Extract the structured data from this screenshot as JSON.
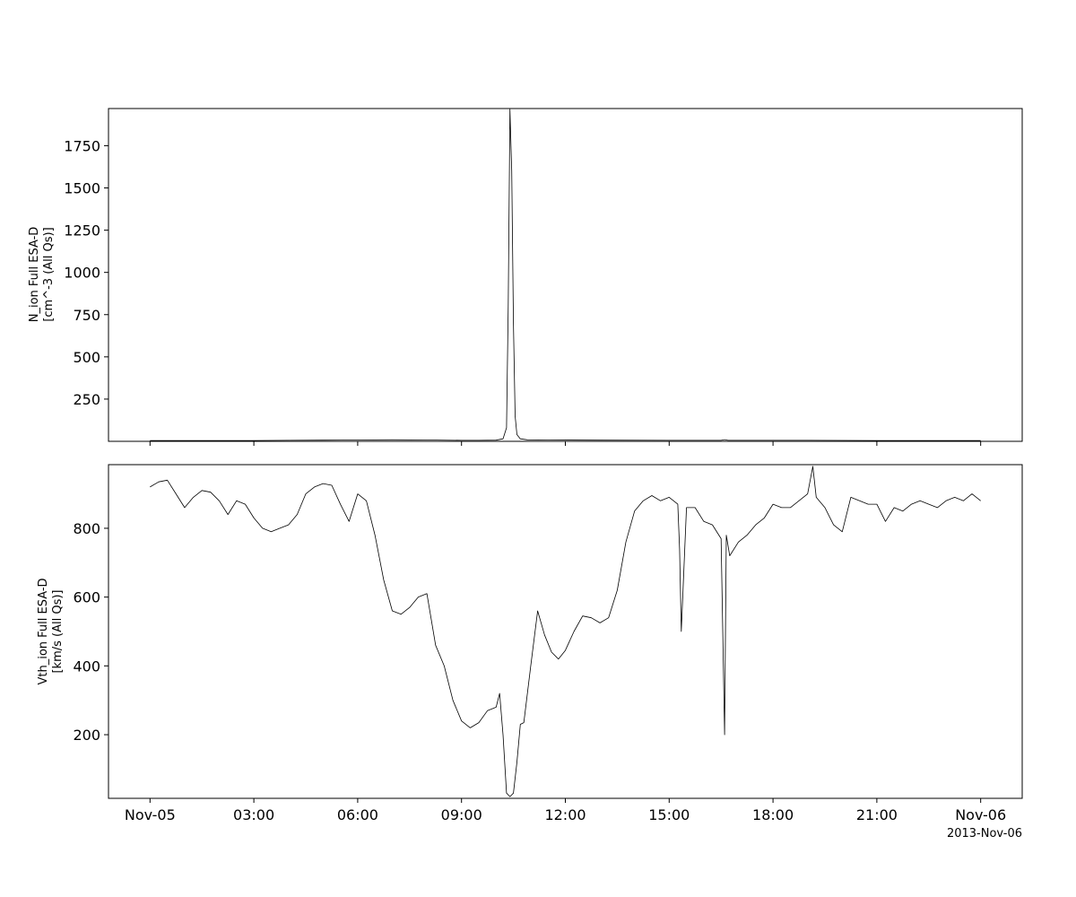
{
  "chart_data": [
    {
      "type": "line",
      "ylabel_line1": "N_ion Full ESA-D",
      "ylabel_line2": "[cm^-3 (All Qs)]",
      "ylim": [
        0,
        1970
      ],
      "yticks": [
        250,
        500,
        750,
        1000,
        1250,
        1500,
        1750
      ],
      "x_hours": [
        0,
        1,
        2,
        3,
        4,
        5,
        6,
        7,
        8,
        9,
        9.5,
        10,
        10.2,
        10.3,
        10.35,
        10.4,
        10.45,
        10.5,
        10.55,
        10.6,
        10.7,
        10.9,
        11.5,
        13,
        15,
        16,
        16.5,
        16.6,
        16.7,
        17,
        19,
        21,
        23,
        24
      ],
      "values": [
        5,
        5,
        5,
        5,
        6,
        7,
        8,
        9,
        8,
        6,
        6,
        7,
        15,
        80,
        800,
        1965,
        1600,
        700,
        150,
        40,
        15,
        9,
        8,
        7,
        6,
        6,
        6,
        10,
        6,
        6,
        6,
        5,
        5,
        5
      ],
      "series": [
        {
          "color": "#000000"
        }
      ]
    },
    {
      "type": "line",
      "ylabel_line1": "Vth_ion Full ESA-D",
      "ylabel_line2": "[km/s (All Qs)]",
      "ylim": [
        15,
        985
      ],
      "yticks": [
        200,
        400,
        600,
        800
      ],
      "x_hours": [
        0,
        0.25,
        0.5,
        0.75,
        1,
        1.25,
        1.5,
        1.75,
        2,
        2.25,
        2.5,
        2.75,
        3,
        3.25,
        3.5,
        3.75,
        4,
        4.25,
        4.5,
        4.75,
        5,
        5.25,
        5.5,
        5.75,
        6,
        6.25,
        6.5,
        6.75,
        7,
        7.25,
        7.5,
        7.75,
        8,
        8.25,
        8.5,
        8.75,
        9,
        9.25,
        9.5,
        9.75,
        10,
        10.1,
        10.2,
        10.3,
        10.4,
        10.5,
        10.6,
        10.7,
        10.8,
        11,
        11.2,
        11.4,
        11.6,
        11.8,
        12,
        12.25,
        12.5,
        12.75,
        13,
        13.25,
        13.5,
        13.75,
        14,
        14.25,
        14.5,
        14.75,
        15,
        15.25,
        15.3,
        15.35,
        15.5,
        15.75,
        16,
        16.25,
        16.5,
        16.6,
        16.65,
        16.75,
        17,
        17.25,
        17.5,
        17.75,
        18,
        18.25,
        18.5,
        18.75,
        19,
        19.15,
        19.25,
        19.5,
        19.75,
        20,
        20.25,
        20.5,
        20.75,
        21,
        21.25,
        21.5,
        21.75,
        22,
        22.25,
        22.5,
        22.75,
        23,
        23.25,
        23.5,
        23.75,
        24
      ],
      "values": [
        920,
        935,
        940,
        900,
        860,
        890,
        910,
        905,
        880,
        840,
        880,
        870,
        830,
        800,
        790,
        800,
        810,
        840,
        900,
        920,
        930,
        925,
        870,
        820,
        900,
        880,
        780,
        650,
        560,
        550,
        570,
        600,
        610,
        460,
        400,
        300,
        240,
        220,
        235,
        270,
        280,
        320,
        200,
        30,
        20,
        30,
        120,
        230,
        235,
        400,
        560,
        490,
        440,
        420,
        445,
        500,
        545,
        540,
        525,
        540,
        620,
        760,
        850,
        880,
        895,
        880,
        890,
        870,
        740,
        500,
        860,
        860,
        820,
        810,
        770,
        200,
        780,
        720,
        760,
        780,
        810,
        830,
        870,
        860,
        860,
        880,
        900,
        980,
        890,
        860,
        810,
        790,
        890,
        880,
        870,
        870,
        820,
        860,
        850,
        870,
        880,
        870,
        860,
        880,
        890,
        880,
        900,
        880
      ],
      "series": [
        {
          "color": "#000000"
        }
      ]
    }
  ],
  "x_axis": {
    "xlim_hours": [
      -1.2,
      25.2
    ],
    "tick_hours": [
      0,
      3,
      6,
      9,
      12,
      15,
      18,
      21,
      24
    ],
    "tick_labels": [
      "Nov-05",
      "03:00",
      "06:00",
      "09:00",
      "12:00",
      "15:00",
      "18:00",
      "21:00",
      "Nov-06"
    ],
    "date_label": "2013-Nov-06"
  }
}
